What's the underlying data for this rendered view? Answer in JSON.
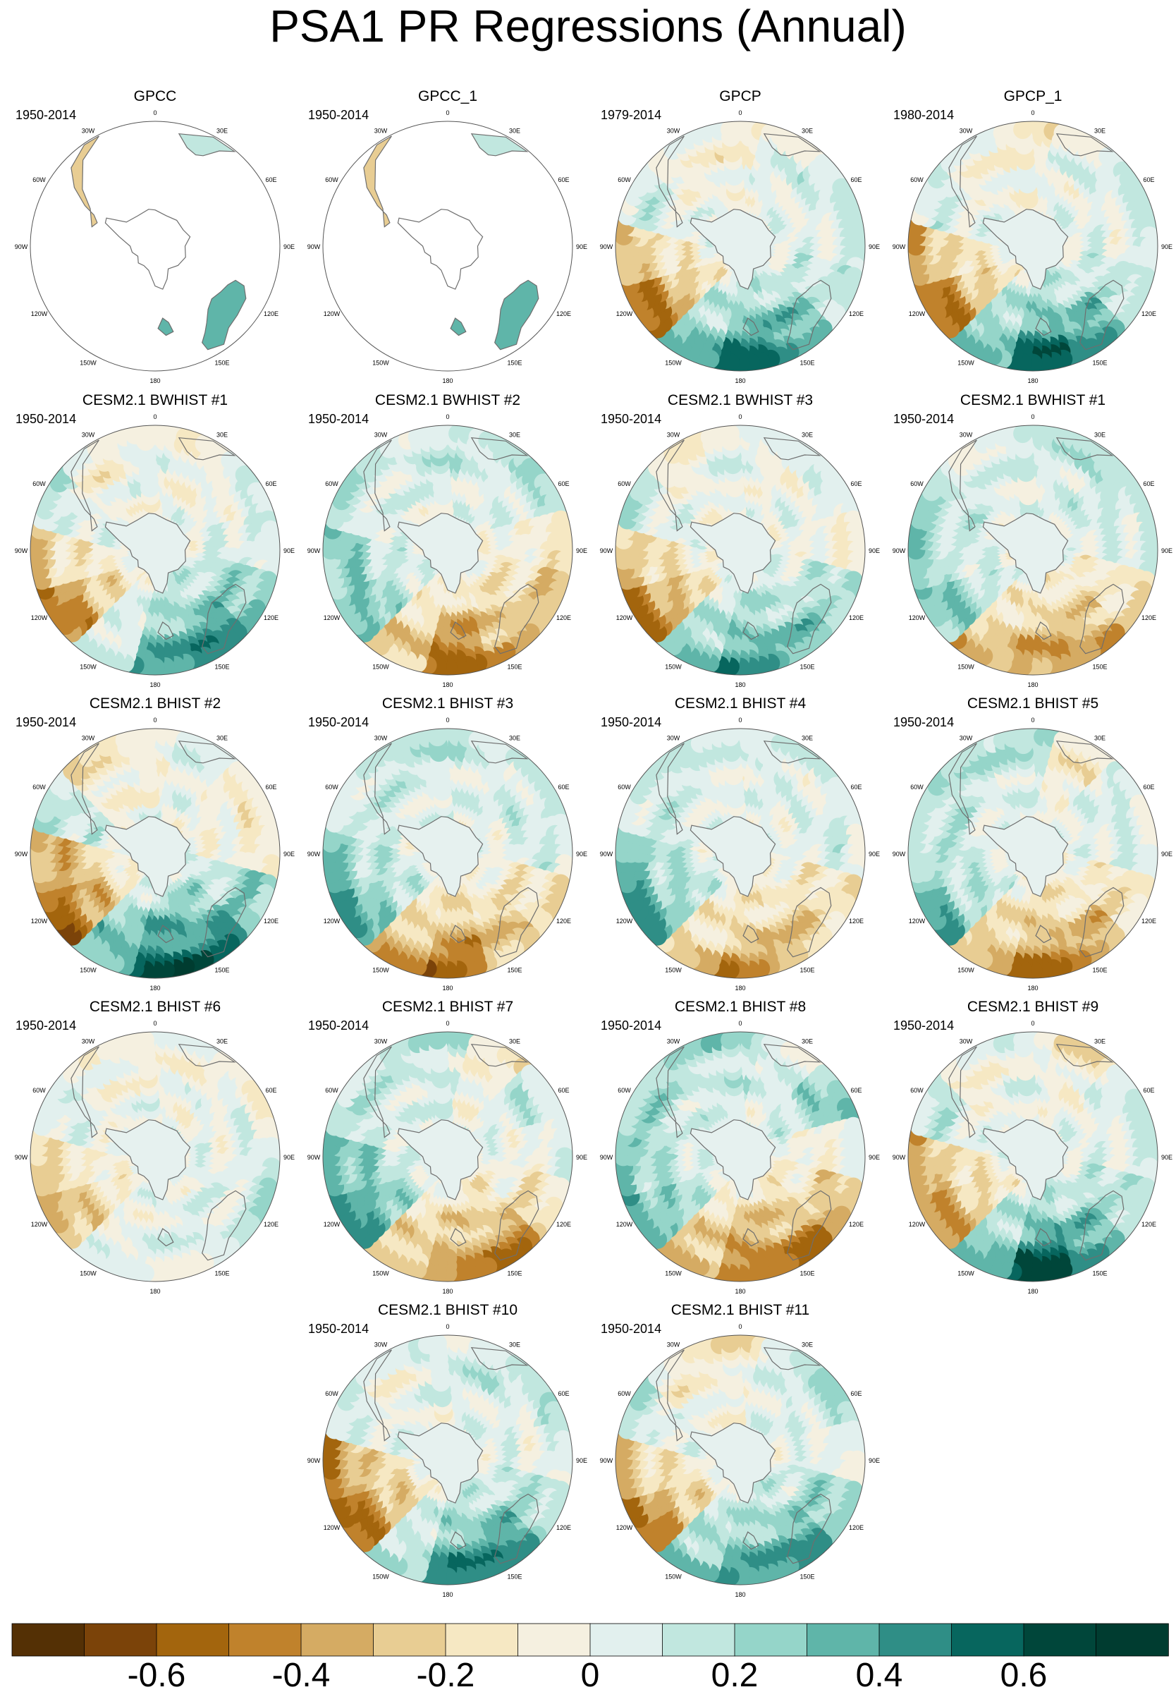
{
  "title": "PSA1 PR Regressions (Annual)",
  "longitude_labels": [
    "0",
    "30E",
    "60E",
    "90E",
    "120E",
    "150E",
    "180",
    "150W",
    "120W",
    "90W",
    "60W",
    "30W"
  ],
  "panels": [
    {
      "title": "GPCC",
      "period": "1950-2014",
      "coverage": "land-only",
      "pattern": [
        0.05,
        -0.1,
        0.05,
        0.05,
        0.15,
        0.3,
        0.2,
        0.05,
        -0.15,
        -0.05,
        -0.05,
        0.0
      ]
    },
    {
      "title": "GPCC_1",
      "period": "1950-2014",
      "coverage": "land-only",
      "pattern": [
        0.05,
        -0.1,
        0.05,
        0.05,
        0.15,
        0.3,
        0.2,
        0.05,
        -0.15,
        -0.05,
        -0.05,
        0.0
      ]
    },
    {
      "title": "GPCP",
      "period": "1979-2014",
      "coverage": "full",
      "pattern": [
        -0.1,
        0.05,
        0.1,
        0.05,
        0.2,
        0.45,
        0.55,
        0.35,
        -0.55,
        -0.3,
        0.1,
        -0.05
      ]
    },
    {
      "title": "GPCP_1",
      "period": "1980-2014",
      "coverage": "full",
      "pattern": [
        -0.1,
        0.05,
        0.05,
        0.05,
        0.2,
        0.45,
        0.6,
        0.35,
        -0.55,
        -0.35,
        0.1,
        -0.05
      ]
    },
    {
      "title": "CESM2.1 BWHIST #1",
      "period": "1950-2014",
      "coverage": "full",
      "pattern": [
        0.05,
        -0.05,
        0.0,
        0.1,
        0.35,
        0.5,
        0.45,
        0.1,
        -0.5,
        -0.25,
        0.1,
        -0.1
      ]
    },
    {
      "title": "CESM2.1 BWHIST #2",
      "period": "1950-2014",
      "coverage": "full",
      "pattern": [
        0.2,
        0.1,
        0.15,
        -0.1,
        -0.3,
        -0.4,
        -0.6,
        -0.3,
        0.35,
        0.3,
        0.1,
        0.1
      ]
    },
    {
      "title": "CESM2.1 BWHIST #3",
      "period": "1950-2014",
      "coverage": "full",
      "pattern": [
        0.05,
        -0.05,
        0.05,
        -0.05,
        0.2,
        0.35,
        0.45,
        0.3,
        -0.5,
        -0.3,
        0.1,
        -0.05
      ]
    },
    {
      "title": "CESM2.1 BWHIST #1",
      "period": "1950-2014",
      "coverage": "full",
      "pattern": [
        0.1,
        0.15,
        0.2,
        0.1,
        -0.2,
        -0.4,
        -0.45,
        -0.3,
        0.35,
        0.2,
        0.2,
        0.1
      ]
    },
    {
      "title": "CESM2.1 BHIST #2",
      "period": "1950-2014",
      "coverage": "full",
      "pattern": [
        -0.1,
        0.05,
        -0.1,
        -0.1,
        0.3,
        0.55,
        0.65,
        0.4,
        -0.6,
        -0.45,
        0.2,
        -0.15
      ]
    },
    {
      "title": "CESM2.1 BHIST #3",
      "period": "1950-2014",
      "coverage": "full",
      "pattern": [
        0.15,
        0.1,
        0.15,
        0.1,
        -0.2,
        -0.35,
        -0.55,
        -0.35,
        0.4,
        0.3,
        0.15,
        0.15
      ]
    },
    {
      "title": "CESM2.1 BHIST #4",
      "period": "1950-2014",
      "coverage": "full",
      "pattern": [
        0.05,
        0.1,
        0.05,
        0.1,
        -0.2,
        -0.35,
        -0.4,
        -0.25,
        0.4,
        0.35,
        0.15,
        0.1
      ]
    },
    {
      "title": "CESM2.1 BHIST #5",
      "period": "1950-2014",
      "coverage": "full",
      "pattern": [
        0.2,
        -0.15,
        0.1,
        0.1,
        -0.2,
        -0.4,
        -0.5,
        -0.35,
        0.35,
        0.25,
        0.2,
        0.15
      ]
    },
    {
      "title": "CESM2.1 BHIST #6",
      "period": "1950-2014",
      "coverage": "full",
      "pattern": [
        -0.05,
        -0.05,
        0.0,
        0.05,
        0.1,
        0.1,
        0.05,
        0.0,
        -0.35,
        -0.2,
        0.05,
        -0.05
      ]
    },
    {
      "title": "CESM2.1 BHIST #7",
      "period": "1950-2014",
      "coverage": "full",
      "pattern": [
        0.15,
        -0.1,
        0.15,
        0.0,
        -0.2,
        -0.45,
        -0.45,
        -0.3,
        0.5,
        0.4,
        0.15,
        0.15
      ]
    },
    {
      "title": "CESM2.1 BHIST #8",
      "period": "1950-2014",
      "coverage": "full",
      "pattern": [
        0.2,
        0.1,
        0.3,
        -0.05,
        -0.3,
        -0.5,
        -0.55,
        -0.35,
        0.4,
        0.3,
        0.25,
        0.2
      ]
    },
    {
      "title": "CESM2.1 BHIST #9",
      "period": "1950-2014",
      "coverage": "full",
      "pattern": [
        0.05,
        -0.1,
        0.05,
        0.05,
        0.25,
        0.45,
        0.65,
        0.35,
        -0.45,
        -0.35,
        0.15,
        -0.1
      ]
    },
    {
      "title": "CESM2.1 BHIST #10",
      "period": "1950-2014",
      "coverage": "full",
      "pattern": [
        0.1,
        0.15,
        0.1,
        0.05,
        0.25,
        0.5,
        0.5,
        0.2,
        -0.6,
        -0.45,
        0.1,
        -0.05
      ]
    },
    {
      "title": "CESM2.1 BHIST #11",
      "period": "1950-2014",
      "coverage": "full",
      "pattern": [
        -0.1,
        0.1,
        0.15,
        0.05,
        0.3,
        0.45,
        0.45,
        0.3,
        -0.5,
        -0.3,
        0.1,
        -0.1
      ]
    }
  ],
  "colorbar": {
    "levels": [
      -0.7,
      -0.6,
      -0.5,
      -0.4,
      -0.3,
      -0.2,
      -0.1,
      0,
      0.1,
      0.2,
      0.3,
      0.4,
      0.5,
      0.6,
      0.7
    ],
    "tick_labels": [
      {
        "value": -0.6,
        "label": "-0.6"
      },
      {
        "value": -0.4,
        "label": "-0.4"
      },
      {
        "value": -0.2,
        "label": "-0.2"
      },
      {
        "value": 0,
        "label": "0"
      },
      {
        "value": 0.2,
        "label": "0.2"
      },
      {
        "value": 0.4,
        "label": "0.4"
      },
      {
        "value": 0.6,
        "label": "0.6"
      }
    ],
    "colors": [
      "#543005",
      "#7b4309",
      "#a3650d",
      "#c0822c",
      "#d5ab63",
      "#e8cd93",
      "#f6e8c3",
      "#f5f0e0",
      "#e2f0ee",
      "#c1e7df",
      "#95d5c9",
      "#5fb5a9",
      "#2f8e86",
      "#07665e",
      "#00463a",
      "#003c30"
    ]
  }
}
